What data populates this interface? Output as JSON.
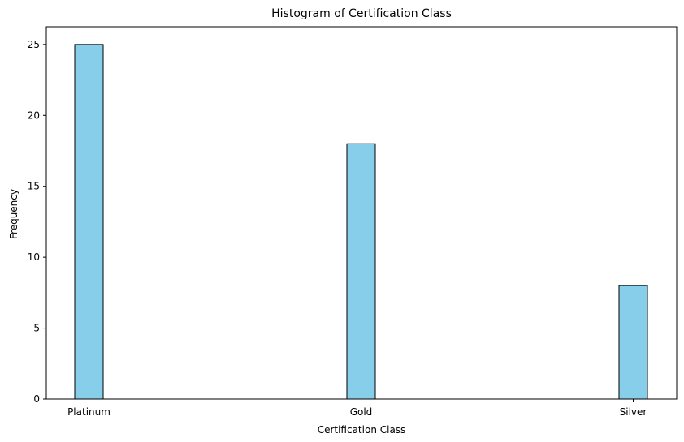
{
  "chart_data": {
    "type": "bar",
    "title": "Histogram of Certification Class",
    "xlabel": "Certification Class",
    "ylabel": "Frequency",
    "categories": [
      "Platinum",
      "Gold",
      "Silver"
    ],
    "values": [
      25,
      18,
      8
    ],
    "yticks": [
      0,
      5,
      10,
      15,
      20,
      25
    ],
    "ylim": [
      0,
      26.25
    ],
    "grid": false,
    "colors": {
      "bar_fill": "#87CEEB",
      "bar_edge": "#000000"
    }
  }
}
